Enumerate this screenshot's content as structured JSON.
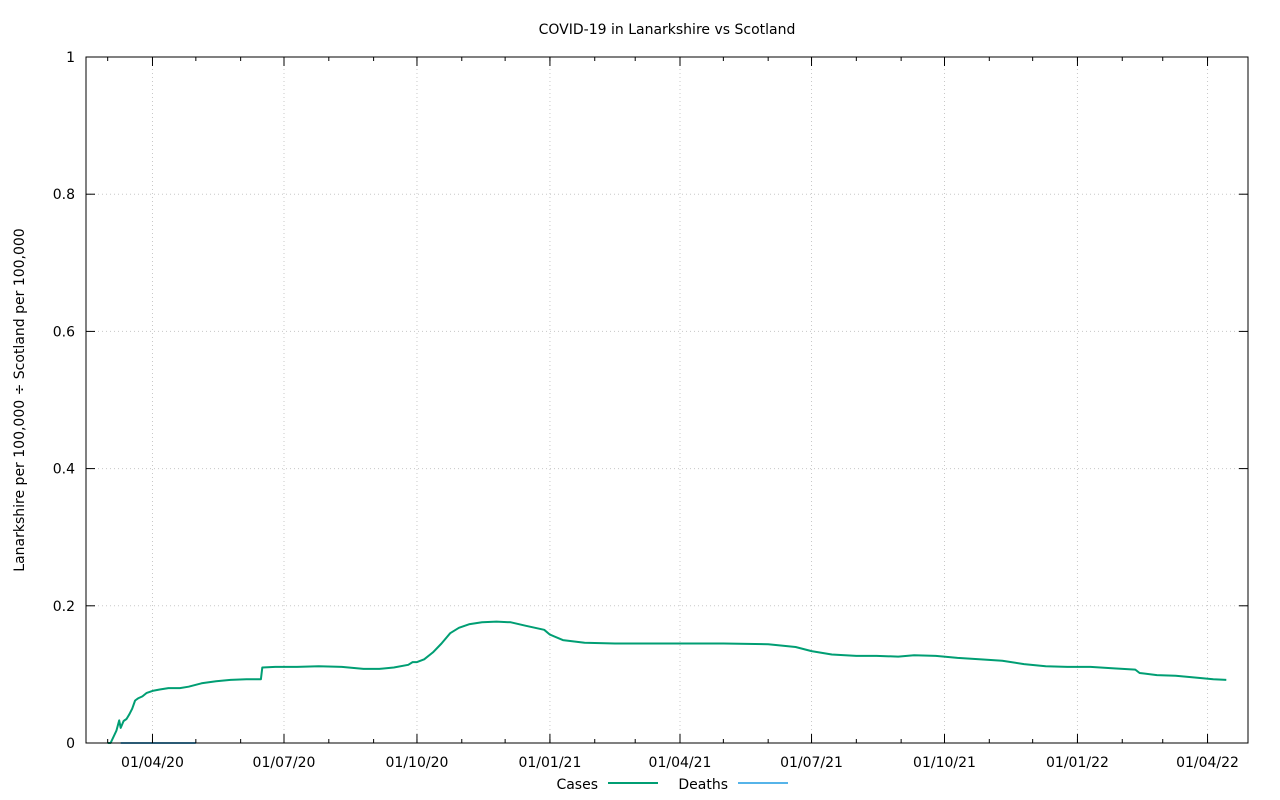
{
  "chart_data": {
    "type": "line",
    "title": "COVID-19 in Lanarkshire vs Scotland",
    "xlabel": "",
    "ylabel": "Lanarkshire per 100,000 ÷ Scotland per 100,000",
    "ylim": [
      0,
      1
    ],
    "xlim": [
      "2020-02-15",
      "2022-04-29"
    ],
    "y_ticks": [
      {
        "value": 0,
        "label": "0"
      },
      {
        "value": 0.2,
        "label": "0.2"
      },
      {
        "value": 0.4,
        "label": "0.4"
      },
      {
        "value": 0.6,
        "label": "0.6"
      },
      {
        "value": 0.8,
        "label": "0.8"
      },
      {
        "value": 1,
        "label": "1"
      }
    ],
    "x_ticks": [
      {
        "value": "2020-04-01",
        "label": "01/04/20"
      },
      {
        "value": "2020-07-01",
        "label": "01/07/20"
      },
      {
        "value": "2020-10-01",
        "label": "01/10/20"
      },
      {
        "value": "2021-01-01",
        "label": "01/01/21"
      },
      {
        "value": "2021-04-01",
        "label": "01/04/21"
      },
      {
        "value": "2021-07-01",
        "label": "01/07/21"
      },
      {
        "value": "2021-10-01",
        "label": "01/10/21"
      },
      {
        "value": "2022-01-01",
        "label": "01/01/22"
      },
      {
        "value": "2022-04-01",
        "label": "01/04/22"
      }
    ],
    "grid": true,
    "legend": "bottom-center",
    "series": [
      {
        "name": "Cases",
        "color": "#009e73",
        "points": [
          [
            "2020-03-01",
            0.0
          ],
          [
            "2020-03-03",
            0.0
          ],
          [
            "2020-03-07",
            0.018
          ],
          [
            "2020-03-09",
            0.033
          ],
          [
            "2020-03-10",
            0.022
          ],
          [
            "2020-03-12",
            0.032
          ],
          [
            "2020-03-14",
            0.035
          ],
          [
            "2020-03-16",
            0.042
          ],
          [
            "2020-03-18",
            0.05
          ],
          [
            "2020-03-20",
            0.062
          ],
          [
            "2020-03-22",
            0.065
          ],
          [
            "2020-03-25",
            0.068
          ],
          [
            "2020-03-28",
            0.073
          ],
          [
            "2020-04-01",
            0.076
          ],
          [
            "2020-04-06",
            0.078
          ],
          [
            "2020-04-12",
            0.08
          ],
          [
            "2020-04-20",
            0.08
          ],
          [
            "2020-04-26",
            0.082
          ],
          [
            "2020-05-05",
            0.087
          ],
          [
            "2020-05-15",
            0.09
          ],
          [
            "2020-05-25",
            0.092
          ],
          [
            "2020-06-05",
            0.093
          ],
          [
            "2020-06-15",
            0.093
          ],
          [
            "2020-06-16",
            0.11
          ],
          [
            "2020-06-25",
            0.111
          ],
          [
            "2020-07-10",
            0.111
          ],
          [
            "2020-07-25",
            0.112
          ],
          [
            "2020-08-10",
            0.111
          ],
          [
            "2020-08-25",
            0.108
          ],
          [
            "2020-09-05",
            0.108
          ],
          [
            "2020-09-15",
            0.11
          ],
          [
            "2020-09-25",
            0.114
          ],
          [
            "2020-09-28",
            0.118
          ],
          [
            "2020-10-01",
            0.118
          ],
          [
            "2020-10-06",
            0.122
          ],
          [
            "2020-10-12",
            0.132
          ],
          [
            "2020-10-18",
            0.145
          ],
          [
            "2020-10-24",
            0.16
          ],
          [
            "2020-10-30",
            0.168
          ],
          [
            "2020-11-06",
            0.173
          ],
          [
            "2020-11-15",
            0.176
          ],
          [
            "2020-11-25",
            0.177
          ],
          [
            "2020-12-05",
            0.176
          ],
          [
            "2020-12-15",
            0.171
          ],
          [
            "2020-12-28",
            0.165
          ],
          [
            "2021-01-01",
            0.158
          ],
          [
            "2021-01-10",
            0.15
          ],
          [
            "2021-01-25",
            0.146
          ],
          [
            "2021-02-15",
            0.145
          ],
          [
            "2021-03-10",
            0.145
          ],
          [
            "2021-04-05",
            0.145
          ],
          [
            "2021-05-01",
            0.145
          ],
          [
            "2021-06-01",
            0.144
          ],
          [
            "2021-06-20",
            0.14
          ],
          [
            "2021-07-01",
            0.134
          ],
          [
            "2021-07-15",
            0.129
          ],
          [
            "2021-08-01",
            0.127
          ],
          [
            "2021-08-15",
            0.127
          ],
          [
            "2021-08-30",
            0.126
          ],
          [
            "2021-09-10",
            0.128
          ],
          [
            "2021-09-25",
            0.127
          ],
          [
            "2021-10-10",
            0.124
          ],
          [
            "2021-10-25",
            0.122
          ],
          [
            "2021-11-10",
            0.12
          ],
          [
            "2021-11-25",
            0.115
          ],
          [
            "2021-12-10",
            0.112
          ],
          [
            "2021-12-25",
            0.111
          ],
          [
            "2022-01-10",
            0.111
          ],
          [
            "2022-01-25",
            0.109
          ],
          [
            "2022-02-10",
            0.107
          ],
          [
            "2022-02-13",
            0.102
          ],
          [
            "2022-02-25",
            0.099
          ],
          [
            "2022-03-10",
            0.098
          ],
          [
            "2022-03-25",
            0.095
          ],
          [
            "2022-04-05",
            0.093
          ],
          [
            "2022-04-14",
            0.092
          ]
        ]
      },
      {
        "name": "Deaths",
        "color": "#56b4e9",
        "points": [
          [
            "2020-03-10",
            0.0
          ],
          [
            "2020-05-01",
            0.0
          ]
        ]
      }
    ]
  }
}
